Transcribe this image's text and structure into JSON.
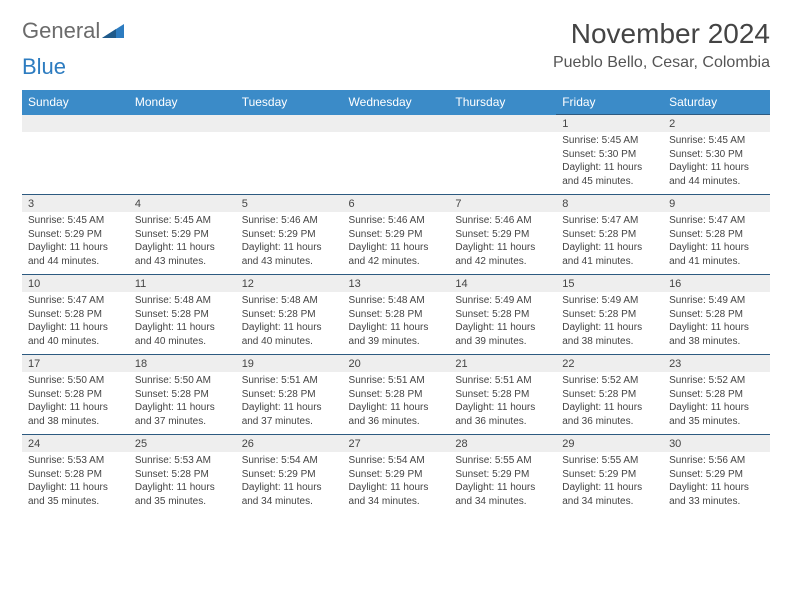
{
  "logo": {
    "general": "General",
    "blue": "Blue"
  },
  "title": "November 2024",
  "location": "Pueblo Bello, Cesar, Colombia",
  "colors": {
    "header_bg": "#3b8bc8",
    "header_text": "#ffffff",
    "daynum_bg": "#eeeeee",
    "rule": "#2d5a80",
    "body_text": "#444444",
    "logo_gray": "#6b6b6b",
    "logo_blue": "#2d7cc0"
  },
  "days_of_week": [
    "Sunday",
    "Monday",
    "Tuesday",
    "Wednesday",
    "Thursday",
    "Friday",
    "Saturday"
  ],
  "weeks": [
    [
      null,
      null,
      null,
      null,
      null,
      {
        "n": "1",
        "sunrise": "Sunrise: 5:45 AM",
        "sunset": "Sunset: 5:30 PM",
        "daylight": "Daylight: 11 hours and 45 minutes."
      },
      {
        "n": "2",
        "sunrise": "Sunrise: 5:45 AM",
        "sunset": "Sunset: 5:30 PM",
        "daylight": "Daylight: 11 hours and 44 minutes."
      }
    ],
    [
      {
        "n": "3",
        "sunrise": "Sunrise: 5:45 AM",
        "sunset": "Sunset: 5:29 PM",
        "daylight": "Daylight: 11 hours and 44 minutes."
      },
      {
        "n": "4",
        "sunrise": "Sunrise: 5:45 AM",
        "sunset": "Sunset: 5:29 PM",
        "daylight": "Daylight: 11 hours and 43 minutes."
      },
      {
        "n": "5",
        "sunrise": "Sunrise: 5:46 AM",
        "sunset": "Sunset: 5:29 PM",
        "daylight": "Daylight: 11 hours and 43 minutes."
      },
      {
        "n": "6",
        "sunrise": "Sunrise: 5:46 AM",
        "sunset": "Sunset: 5:29 PM",
        "daylight": "Daylight: 11 hours and 42 minutes."
      },
      {
        "n": "7",
        "sunrise": "Sunrise: 5:46 AM",
        "sunset": "Sunset: 5:29 PM",
        "daylight": "Daylight: 11 hours and 42 minutes."
      },
      {
        "n": "8",
        "sunrise": "Sunrise: 5:47 AM",
        "sunset": "Sunset: 5:28 PM",
        "daylight": "Daylight: 11 hours and 41 minutes."
      },
      {
        "n": "9",
        "sunrise": "Sunrise: 5:47 AM",
        "sunset": "Sunset: 5:28 PM",
        "daylight": "Daylight: 11 hours and 41 minutes."
      }
    ],
    [
      {
        "n": "10",
        "sunrise": "Sunrise: 5:47 AM",
        "sunset": "Sunset: 5:28 PM",
        "daylight": "Daylight: 11 hours and 40 minutes."
      },
      {
        "n": "11",
        "sunrise": "Sunrise: 5:48 AM",
        "sunset": "Sunset: 5:28 PM",
        "daylight": "Daylight: 11 hours and 40 minutes."
      },
      {
        "n": "12",
        "sunrise": "Sunrise: 5:48 AM",
        "sunset": "Sunset: 5:28 PM",
        "daylight": "Daylight: 11 hours and 40 minutes."
      },
      {
        "n": "13",
        "sunrise": "Sunrise: 5:48 AM",
        "sunset": "Sunset: 5:28 PM",
        "daylight": "Daylight: 11 hours and 39 minutes."
      },
      {
        "n": "14",
        "sunrise": "Sunrise: 5:49 AM",
        "sunset": "Sunset: 5:28 PM",
        "daylight": "Daylight: 11 hours and 39 minutes."
      },
      {
        "n": "15",
        "sunrise": "Sunrise: 5:49 AM",
        "sunset": "Sunset: 5:28 PM",
        "daylight": "Daylight: 11 hours and 38 minutes."
      },
      {
        "n": "16",
        "sunrise": "Sunrise: 5:49 AM",
        "sunset": "Sunset: 5:28 PM",
        "daylight": "Daylight: 11 hours and 38 minutes."
      }
    ],
    [
      {
        "n": "17",
        "sunrise": "Sunrise: 5:50 AM",
        "sunset": "Sunset: 5:28 PM",
        "daylight": "Daylight: 11 hours and 38 minutes."
      },
      {
        "n": "18",
        "sunrise": "Sunrise: 5:50 AM",
        "sunset": "Sunset: 5:28 PM",
        "daylight": "Daylight: 11 hours and 37 minutes."
      },
      {
        "n": "19",
        "sunrise": "Sunrise: 5:51 AM",
        "sunset": "Sunset: 5:28 PM",
        "daylight": "Daylight: 11 hours and 37 minutes."
      },
      {
        "n": "20",
        "sunrise": "Sunrise: 5:51 AM",
        "sunset": "Sunset: 5:28 PM",
        "daylight": "Daylight: 11 hours and 36 minutes."
      },
      {
        "n": "21",
        "sunrise": "Sunrise: 5:51 AM",
        "sunset": "Sunset: 5:28 PM",
        "daylight": "Daylight: 11 hours and 36 minutes."
      },
      {
        "n": "22",
        "sunrise": "Sunrise: 5:52 AM",
        "sunset": "Sunset: 5:28 PM",
        "daylight": "Daylight: 11 hours and 36 minutes."
      },
      {
        "n": "23",
        "sunrise": "Sunrise: 5:52 AM",
        "sunset": "Sunset: 5:28 PM",
        "daylight": "Daylight: 11 hours and 35 minutes."
      }
    ],
    [
      {
        "n": "24",
        "sunrise": "Sunrise: 5:53 AM",
        "sunset": "Sunset: 5:28 PM",
        "daylight": "Daylight: 11 hours and 35 minutes."
      },
      {
        "n": "25",
        "sunrise": "Sunrise: 5:53 AM",
        "sunset": "Sunset: 5:28 PM",
        "daylight": "Daylight: 11 hours and 35 minutes."
      },
      {
        "n": "26",
        "sunrise": "Sunrise: 5:54 AM",
        "sunset": "Sunset: 5:29 PM",
        "daylight": "Daylight: 11 hours and 34 minutes."
      },
      {
        "n": "27",
        "sunrise": "Sunrise: 5:54 AM",
        "sunset": "Sunset: 5:29 PM",
        "daylight": "Daylight: 11 hours and 34 minutes."
      },
      {
        "n": "28",
        "sunrise": "Sunrise: 5:55 AM",
        "sunset": "Sunset: 5:29 PM",
        "daylight": "Daylight: 11 hours and 34 minutes."
      },
      {
        "n": "29",
        "sunrise": "Sunrise: 5:55 AM",
        "sunset": "Sunset: 5:29 PM",
        "daylight": "Daylight: 11 hours and 34 minutes."
      },
      {
        "n": "30",
        "sunrise": "Sunrise: 5:56 AM",
        "sunset": "Sunset: 5:29 PM",
        "daylight": "Daylight: 11 hours and 33 minutes."
      }
    ]
  ]
}
